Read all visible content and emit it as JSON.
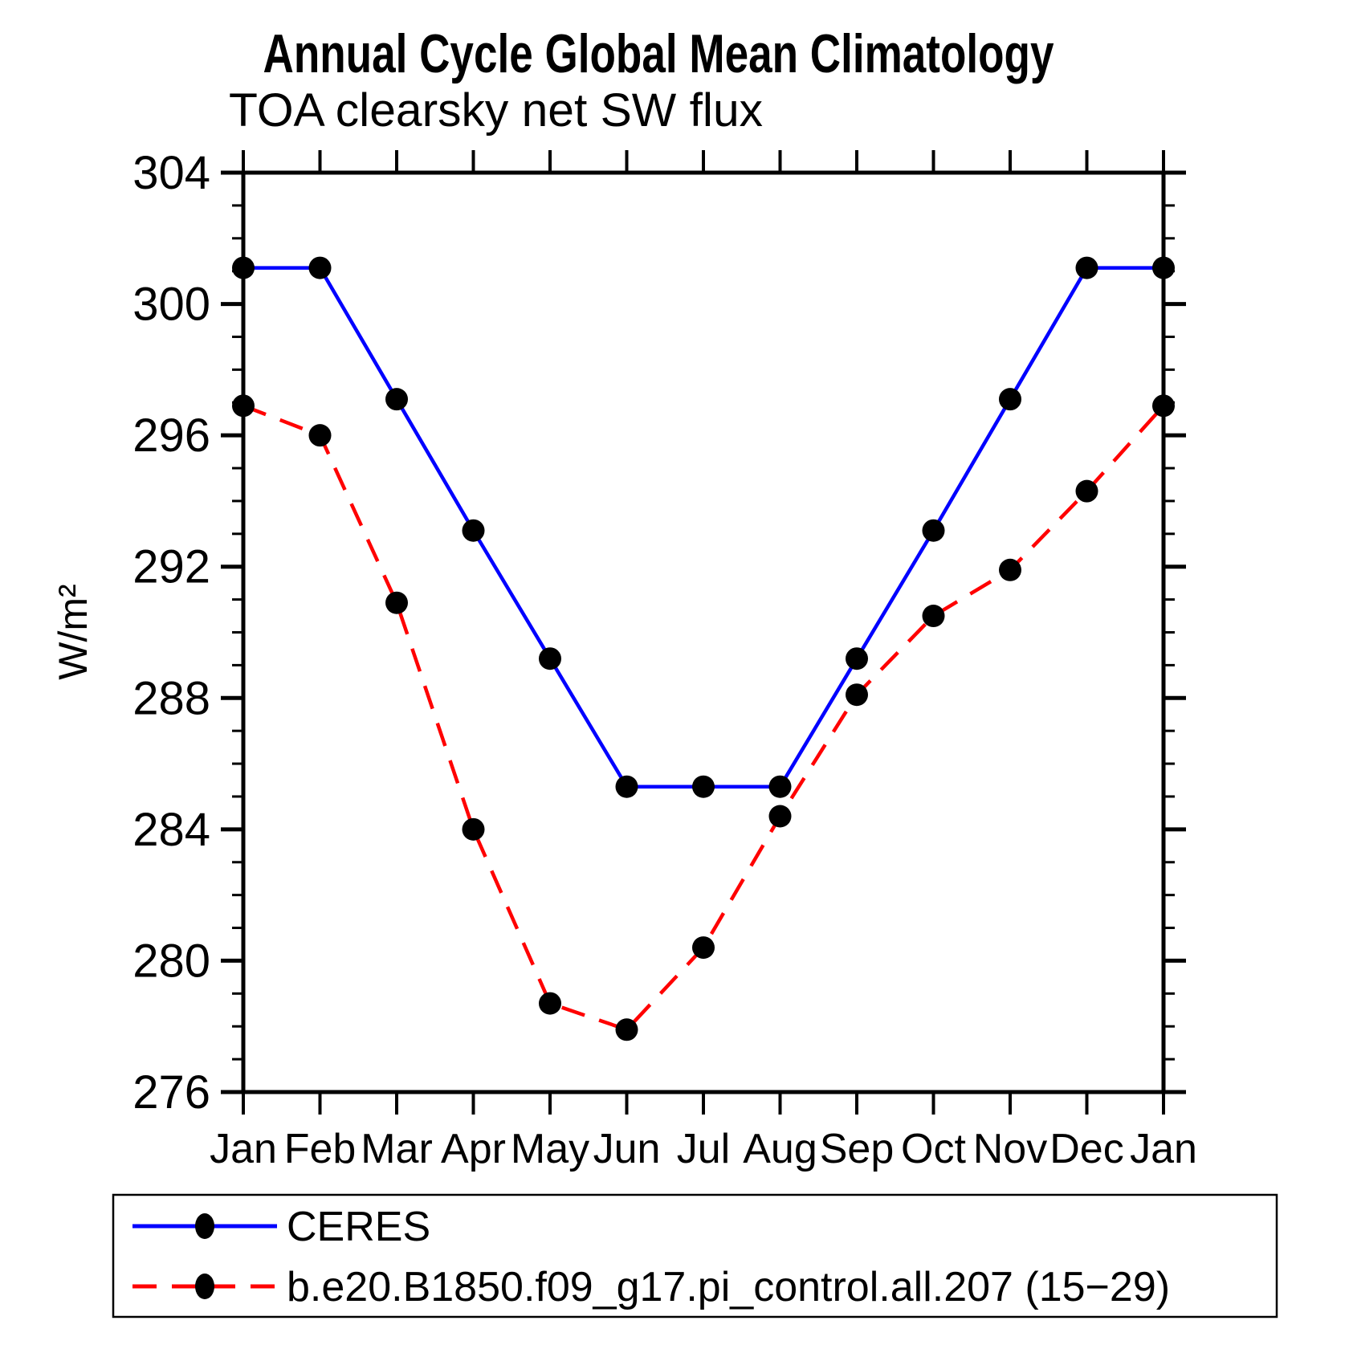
{
  "page": {
    "background_color": "#ffffff",
    "axis_color": "#000000"
  },
  "chart_data": {
    "type": "line",
    "title": "Annual Cycle Global Mean Climatology",
    "subtitle": "TOA clearsky net SW flux",
    "ylabel": "W/m²",
    "xlabel": "",
    "x_categories": [
      "Jan",
      "Feb",
      "Mar",
      "Apr",
      "May",
      "Jun",
      "Jul",
      "Aug",
      "Sep",
      "Oct",
      "Nov",
      "Dec",
      "Jan"
    ],
    "ylim": [
      276,
      304
    ],
    "y_major_tick_step": 4,
    "y_minor_tick_step": 1,
    "y_major_tick_labels": [
      "276",
      "280",
      "284",
      "288",
      "292",
      "296",
      "300",
      "304"
    ],
    "grid": "off",
    "legend_position": "bottom-box",
    "marker_color": "#000000",
    "series": [
      {
        "name": "CERES",
        "color": "#0000ff",
        "line_style": "solid",
        "marker": "filled-circle",
        "values": [
          301.1,
          301.1,
          297.1,
          293.1,
          289.2,
          285.3,
          285.3,
          285.3,
          289.2,
          293.1,
          297.1,
          301.1,
          301.1
        ]
      },
      {
        "name": "b.e20.B1850.f09_g17.pi_control.all.207 (15−29)",
        "color": "#ff0000",
        "line_style": "dashed",
        "marker": "filled-circle",
        "values": [
          296.9,
          296.0,
          290.9,
          284.0,
          278.7,
          277.9,
          280.4,
          284.4,
          288.1,
          290.5,
          291.9,
          294.3,
          296.9
        ]
      }
    ]
  }
}
